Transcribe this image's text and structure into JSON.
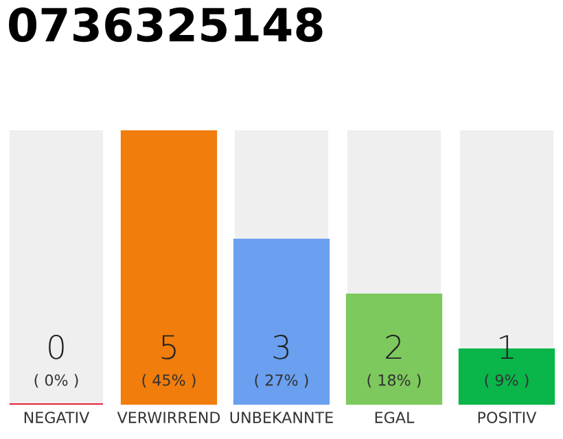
{
  "chart_data": {
    "type": "bar",
    "title": "0736325148",
    "categories": [
      "NEGATIV",
      "VERWIRREND",
      "UNBEKANNTE",
      "EGAL",
      "POSITIV"
    ],
    "values": [
      0,
      5,
      3,
      2,
      1
    ],
    "colors": [
      "#e8203a",
      "#f07d0c",
      "#6aa0ef",
      "#7dc95e",
      "#0ab54a"
    ],
    "value_labels": [
      "0\n( 0% )",
      "5\n( 45% )",
      "3\n( 27% )",
      "2\n( 18% )",
      "1\n( 9% )"
    ],
    "ylim": [
      0,
      5
    ],
    "tick_labels": "x",
    "grid": false,
    "legend": false
  }
}
